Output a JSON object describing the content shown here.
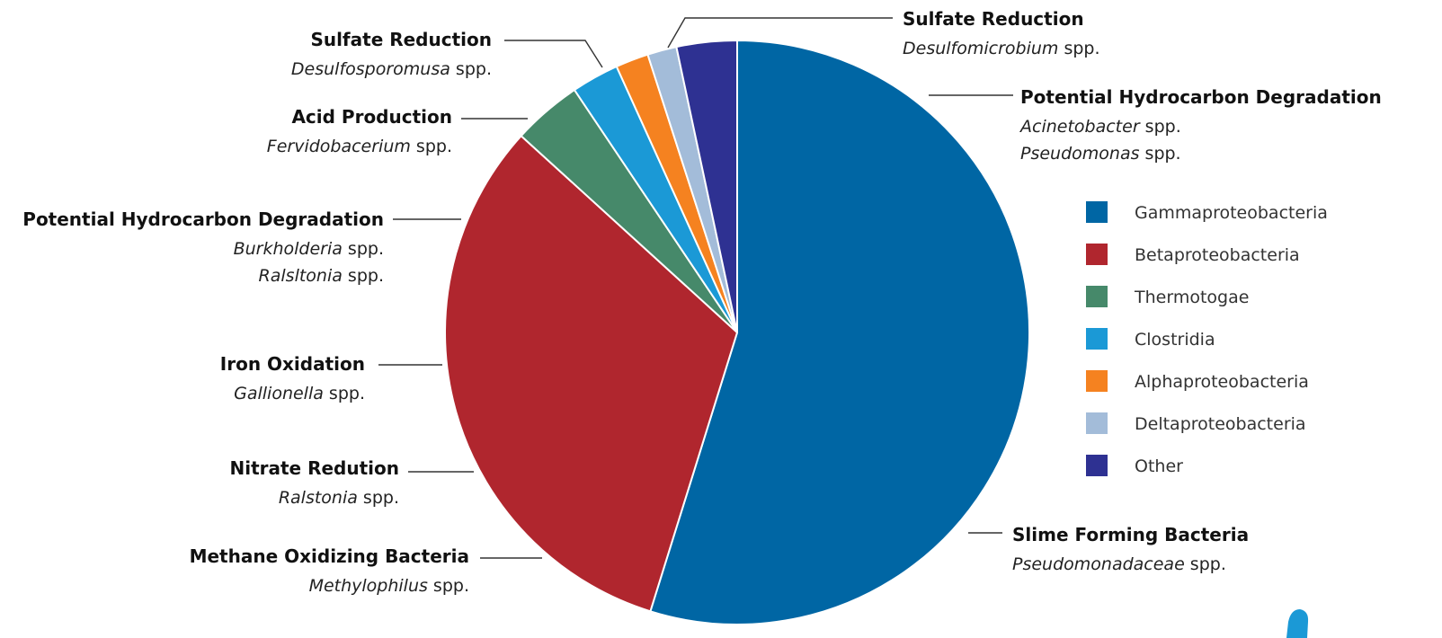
{
  "chart_data": {
    "type": "pie",
    "title": "",
    "slices": [
      {
        "label": "Gammaproteobacteria",
        "value": 54.2,
        "color": "#0066a4"
      },
      {
        "label": "Betaproteobacteria",
        "value": 31.6,
        "color": "#b0262e"
      },
      {
        "label": "Thermotogae",
        "value": 3.8,
        "color": "#46896a"
      },
      {
        "label": "Clostridia",
        "value": 2.6,
        "color": "#1b99d6"
      },
      {
        "label": "Alphaproteobacteria",
        "value": 1.8,
        "color": "#f58220"
      },
      {
        "label": "Deltaproteobacteria",
        "value": 1.6,
        "color": "#a3bcd9"
      },
      {
        "label": "Other",
        "value": 3.3,
        "color": "#2e3192"
      }
    ],
    "legend": {
      "placement": "right",
      "entries": [
        "Gammaproteobacteria",
        "Betaproteobacteria",
        "Thermotogae",
        "Clostridia",
        "Alphaproteobacteria",
        "Deltaproteobacteria",
        "Other"
      ]
    },
    "annotations": [
      {
        "title": "Sulfate Reduction",
        "lines": [
          {
            "genus": "Desulfomicrobium",
            "suffix": " spp."
          }
        ]
      },
      {
        "title": "Potential Hydrocarbon Degradation",
        "lines": [
          {
            "genus": "Acinetobacter",
            "suffix": " spp."
          },
          {
            "genus": "Pseudomonas",
            "suffix": " spp."
          }
        ]
      },
      {
        "title": "Slime Forming Bacteria",
        "lines": [
          {
            "genus": "Pseudomonadaceae",
            "suffix": " spp."
          }
        ]
      },
      {
        "title": "Sulfate Reduction",
        "lines": [
          {
            "genus": "Desulfosporomusa",
            "suffix": " spp."
          }
        ]
      },
      {
        "title": "Acid Production",
        "lines": [
          {
            "genus": "Fervidobacerium",
            "suffix": " spp."
          }
        ]
      },
      {
        "title": "Potential Hydrocarbon Degradation",
        "lines": [
          {
            "genus": "Burkholderia",
            "suffix": " spp."
          },
          {
            "genus": "Ralsltonia",
            "suffix": " spp."
          }
        ]
      },
      {
        "title": "Iron Oxidation",
        "lines": [
          {
            "genus": "Gallionella",
            "suffix": " spp."
          }
        ]
      },
      {
        "title": "Nitrate Redution",
        "lines": [
          {
            "genus": "Ralstonia",
            "suffix": " spp."
          }
        ]
      },
      {
        "title": "Methane Oxidizing Bacteria",
        "lines": [
          {
            "genus": "Methylophilus",
            "suffix": " spp."
          }
        ]
      }
    ]
  }
}
